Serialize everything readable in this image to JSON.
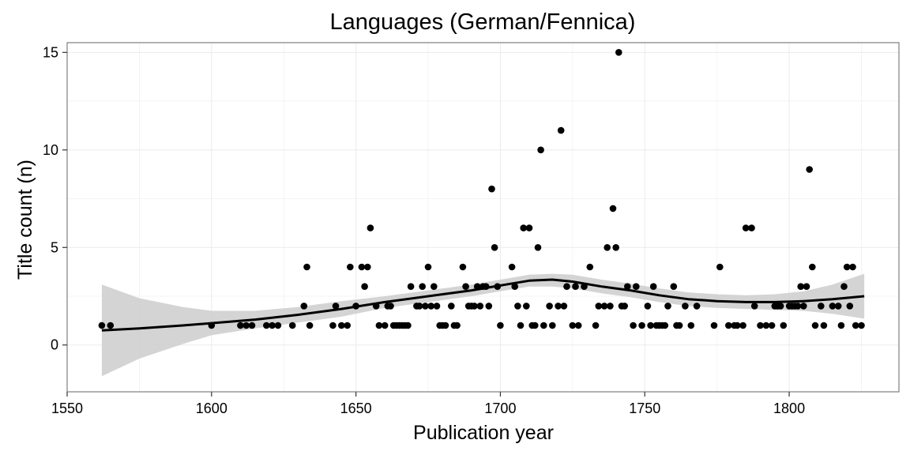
{
  "chart_data": {
    "type": "scatter",
    "title": "Languages (German/Fennica)",
    "xlabel": "Publication year",
    "ylabel": "Title count (n)",
    "xlim": [
      1550,
      1838
    ],
    "ylim": [
      -2.4,
      15.5
    ],
    "x_ticks": [
      1550,
      1600,
      1650,
      1700,
      1750,
      1800
    ],
    "y_ticks": [
      0,
      5,
      10,
      15
    ],
    "x_tick_labels": [
      "1550",
      "1600",
      "1650",
      "1700",
      "1750",
      "1800"
    ],
    "y_tick_labels": [
      "0",
      "5",
      "10",
      "15"
    ],
    "grid": true,
    "legend": "none",
    "colors": {
      "points": "#000000",
      "smooth_line": "#000000",
      "confidence_band": "#cccccc",
      "grid": "#ebebeb",
      "panel_border": "#7f7f7f"
    },
    "points": [
      [
        1562,
        1
      ],
      [
        1565,
        1
      ],
      [
        1600,
        1
      ],
      [
        1610,
        1
      ],
      [
        1612,
        1
      ],
      [
        1614,
        1
      ],
      [
        1619,
        1
      ],
      [
        1621,
        1
      ],
      [
        1623,
        1
      ],
      [
        1628,
        1
      ],
      [
        1632,
        2
      ],
      [
        1633,
        4
      ],
      [
        1634,
        1
      ],
      [
        1642,
        1
      ],
      [
        1643,
        2
      ],
      [
        1645,
        1
      ],
      [
        1647,
        1
      ],
      [
        1648,
        4
      ],
      [
        1650,
        2
      ],
      [
        1652,
        4
      ],
      [
        1653,
        3
      ],
      [
        1654,
        4
      ],
      [
        1655,
        6
      ],
      [
        1657,
        2
      ],
      [
        1658,
        1
      ],
      [
        1660,
        1
      ],
      [
        1661,
        2
      ],
      [
        1662,
        2
      ],
      [
        1663,
        1
      ],
      [
        1664,
        1
      ],
      [
        1665,
        1
      ],
      [
        1666,
        1
      ],
      [
        1667,
        1
      ],
      [
        1668,
        1
      ],
      [
        1669,
        3
      ],
      [
        1671,
        2
      ],
      [
        1672,
        2
      ],
      [
        1673,
        3
      ],
      [
        1674,
        2
      ],
      [
        1675,
        4
      ],
      [
        1676,
        2
      ],
      [
        1677,
        3
      ],
      [
        1678,
        2
      ],
      [
        1679,
        1
      ],
      [
        1680,
        1
      ],
      [
        1681,
        1
      ],
      [
        1683,
        2
      ],
      [
        1684,
        1
      ],
      [
        1685,
        1
      ],
      [
        1687,
        4
      ],
      [
        1688,
        3
      ],
      [
        1689,
        2
      ],
      [
        1690,
        2
      ],
      [
        1691,
        2
      ],
      [
        1692,
        3
      ],
      [
        1693,
        2
      ],
      [
        1694,
        3
      ],
      [
        1695,
        3
      ],
      [
        1696,
        2
      ],
      [
        1697,
        8
      ],
      [
        1698,
        5
      ],
      [
        1699,
        3
      ],
      [
        1700,
        1
      ],
      [
        1704,
        4
      ],
      [
        1705,
        3
      ],
      [
        1706,
        2
      ],
      [
        1707,
        1
      ],
      [
        1708,
        6
      ],
      [
        1709,
        2
      ],
      [
        1710,
        6
      ],
      [
        1711,
        1
      ],
      [
        1712,
        1
      ],
      [
        1713,
        5
      ],
      [
        1714,
        10
      ],
      [
        1715,
        1
      ],
      [
        1717,
        2
      ],
      [
        1718,
        1
      ],
      [
        1720,
        2
      ],
      [
        1721,
        11
      ],
      [
        1722,
        2
      ],
      [
        1723,
        3
      ],
      [
        1725,
        1
      ],
      [
        1726,
        3
      ],
      [
        1727,
        1
      ],
      [
        1729,
        3
      ],
      [
        1731,
        4
      ],
      [
        1733,
        1
      ],
      [
        1734,
        2
      ],
      [
        1736,
        2
      ],
      [
        1737,
        5
      ],
      [
        1738,
        2
      ],
      [
        1739,
        7
      ],
      [
        1740,
        5
      ],
      [
        1741,
        15
      ],
      [
        1742,
        2
      ],
      [
        1743,
        2
      ],
      [
        1744,
        3
      ],
      [
        1746,
        1
      ],
      [
        1747,
        3
      ],
      [
        1749,
        1
      ],
      [
        1751,
        2
      ],
      [
        1752,
        1
      ],
      [
        1753,
        3
      ],
      [
        1754,
        1
      ],
      [
        1755,
        1
      ],
      [
        1756,
        1
      ],
      [
        1757,
        1
      ],
      [
        1758,
        2
      ],
      [
        1760,
        3
      ],
      [
        1761,
        1
      ],
      [
        1762,
        1
      ],
      [
        1764,
        2
      ],
      [
        1766,
        1
      ],
      [
        1768,
        2
      ],
      [
        1774,
        1
      ],
      [
        1776,
        4
      ],
      [
        1779,
        1
      ],
      [
        1781,
        1
      ],
      [
        1782,
        1
      ],
      [
        1784,
        1
      ],
      [
        1785,
        6
      ],
      [
        1787,
        6
      ],
      [
        1788,
        2
      ],
      [
        1790,
        1
      ],
      [
        1792,
        1
      ],
      [
        1794,
        1
      ],
      [
        1795,
        2
      ],
      [
        1796,
        2
      ],
      [
        1797,
        2
      ],
      [
        1798,
        1
      ],
      [
        1800,
        2
      ],
      [
        1801,
        2
      ],
      [
        1802,
        2
      ],
      [
        1803,
        2
      ],
      [
        1804,
        3
      ],
      [
        1805,
        2
      ],
      [
        1806,
        3
      ],
      [
        1807,
        9
      ],
      [
        1808,
        4
      ],
      [
        1809,
        1
      ],
      [
        1811,
        2
      ],
      [
        1812,
        1
      ],
      [
        1815,
        2
      ],
      [
        1817,
        2
      ],
      [
        1818,
        1
      ],
      [
        1819,
        3
      ],
      [
        1820,
        4
      ],
      [
        1821,
        2
      ],
      [
        1822,
        4
      ],
      [
        1823,
        1
      ],
      [
        1825,
        1
      ]
    ],
    "smooth": {
      "x": [
        1562,
        1575,
        1590,
        1600,
        1615,
        1630,
        1645,
        1660,
        1675,
        1690,
        1700,
        1710,
        1718,
        1725,
        1735,
        1745,
        1755,
        1765,
        1775,
        1785,
        1795,
        1805,
        1815,
        1826
      ],
      "y": [
        0.75,
        0.85,
        1.0,
        1.12,
        1.3,
        1.55,
        1.85,
        2.2,
        2.5,
        2.8,
        3.05,
        3.3,
        3.35,
        3.25,
        3.0,
        2.8,
        2.55,
        2.35,
        2.25,
        2.2,
        2.2,
        2.25,
        2.35,
        2.5
      ],
      "lower": [
        -1.6,
        -0.7,
        0.05,
        0.5,
        0.85,
        1.15,
        1.45,
        1.9,
        2.2,
        2.5,
        2.75,
        3.0,
        3.0,
        2.9,
        2.65,
        2.45,
        2.2,
        2.0,
        1.9,
        1.85,
        1.8,
        1.75,
        1.6,
        1.35
      ],
      "upper": [
        3.1,
        2.4,
        1.95,
        1.75,
        1.75,
        1.95,
        2.25,
        2.5,
        2.8,
        3.1,
        3.35,
        3.6,
        3.65,
        3.6,
        3.35,
        3.15,
        2.9,
        2.7,
        2.6,
        2.55,
        2.6,
        2.75,
        3.1,
        3.65
      ]
    }
  }
}
